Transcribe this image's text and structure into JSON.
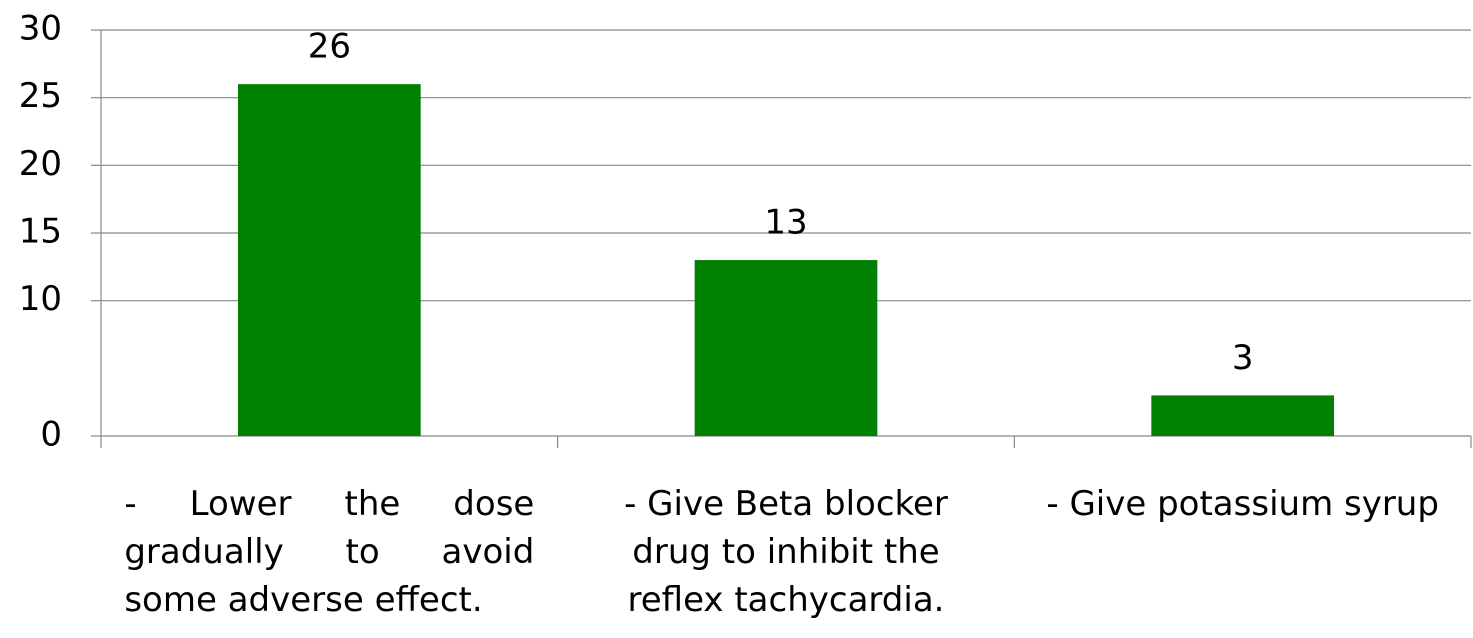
{
  "chart_data": {
    "type": "bar",
    "categories": [
      "- Lower the dose gradually to avoid some adverse effect.",
      "- Give Beta blocker drug to inhibit the reflex tachycardia.",
      "- Give potassium syrup"
    ],
    "values": [
      26,
      13,
      3
    ],
    "color": "#008000",
    "ylim": [
      0,
      30
    ],
    "yticks": [
      0,
      10,
      15,
      20,
      25,
      30
    ],
    "grid": true
  }
}
